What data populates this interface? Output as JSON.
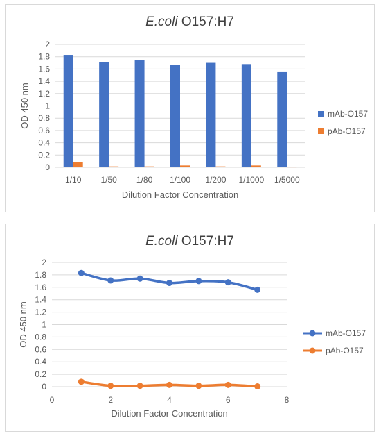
{
  "chart_data": [
    {
      "type": "bar",
      "title_italic": "E.coli",
      "title_rest": " O157:H7",
      "xlabel": "Dilution Factor Concentration",
      "ylabel": "OD 450 nm",
      "ylim": [
        0,
        2
      ],
      "yticks": [
        "0",
        "0.2",
        "0.4",
        "0.6",
        "0.8",
        "1",
        "1.2",
        "1.4",
        "1.6",
        "1.8",
        "2"
      ],
      "categories": [
        "1/10",
        "1/50",
        "1/80",
        "1/100",
        "1/200",
        "1/1000",
        "1/5000"
      ],
      "series": [
        {
          "name": "mAb-O157",
          "color": "#4472c4",
          "values": [
            1.83,
            1.71,
            1.74,
            1.67,
            1.7,
            1.68,
            1.56
          ]
        },
        {
          "name": "pAb-O157",
          "color": "#ed7d31",
          "values": [
            0.08,
            0.015,
            0.015,
            0.03,
            0.015,
            0.03,
            0.005
          ]
        }
      ],
      "grid": true,
      "legend": "right"
    },
    {
      "type": "line",
      "title_italic": "E.coli",
      "title_rest": " O157:H7",
      "xlabel": "Dilution Factor Concentration",
      "ylabel": "OD 450 nm",
      "xlim": [
        0,
        8
      ],
      "ylim": [
        0,
        2
      ],
      "xticks": [
        "0",
        "2",
        "4",
        "6",
        "8"
      ],
      "yticks": [
        "0",
        "0.2",
        "0.4",
        "0.6",
        "0.8",
        "1",
        "1.2",
        "1.4",
        "1.6",
        "1.8",
        "2"
      ],
      "x": [
        1,
        2,
        3,
        4,
        5,
        6,
        7
      ],
      "series": [
        {
          "name": "mAb-O157",
          "color": "#4472c4",
          "values": [
            1.83,
            1.71,
            1.74,
            1.67,
            1.7,
            1.68,
            1.56
          ]
        },
        {
          "name": "pAb-O157",
          "color": "#ed7d31",
          "values": [
            0.08,
            0.015,
            0.015,
            0.03,
            0.015,
            0.03,
            0.005
          ]
        }
      ],
      "grid": true,
      "legend": "right"
    }
  ]
}
